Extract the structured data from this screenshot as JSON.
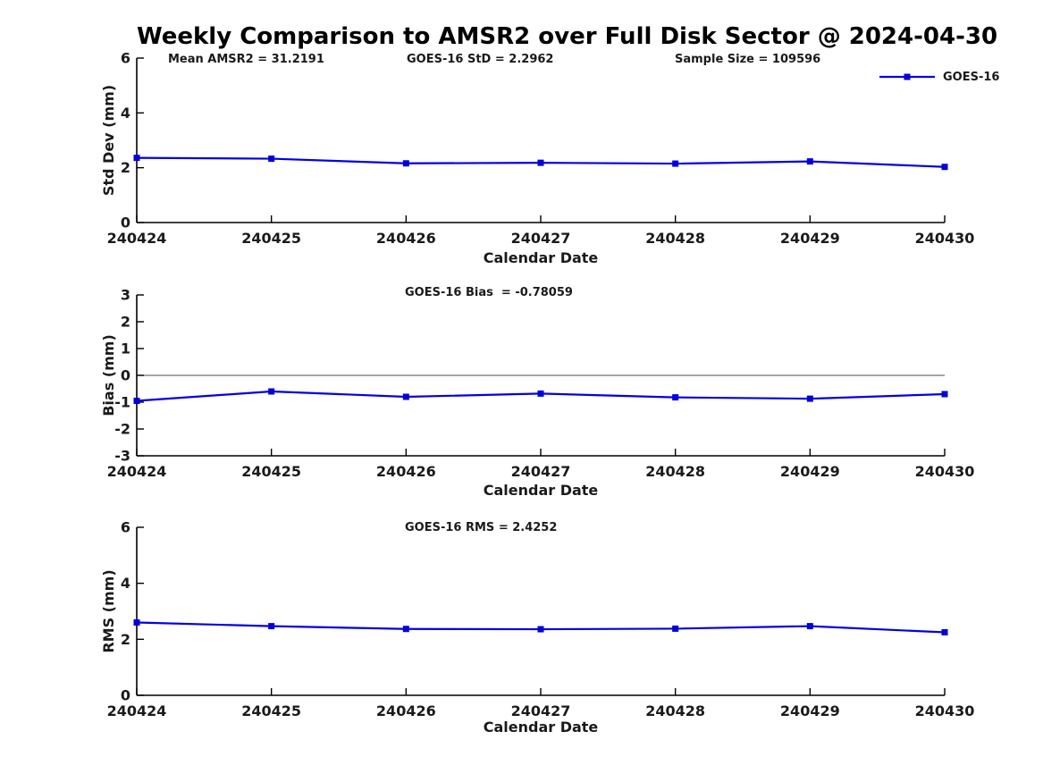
{
  "title": "Weekly Comparison to AMSR2 over Full Disk Sector @ 2024-04-30",
  "colors": {
    "line": "#0000E8",
    "marker": "#0000D8",
    "zero_line": "#6e6e6e",
    "axis": "#000000",
    "text": "#1a1a1a"
  },
  "chart_data": [
    {
      "type": "line",
      "name": "stddev",
      "ylabel": "Std Dev (mm)",
      "xlabel": "Calendar Date",
      "categories": [
        "240424",
        "240425",
        "240426",
        "240427",
        "240428",
        "240429",
        "240430"
      ],
      "series": [
        {
          "name": "GOES-16",
          "values": [
            2.36,
            2.33,
            2.16,
            2.18,
            2.15,
            2.23,
            2.03
          ]
        }
      ],
      "ylim": [
        0,
        6
      ],
      "yticks": [
        0,
        2,
        4,
        6
      ],
      "grid": false,
      "legend_position": "top-right",
      "annotations": [
        {
          "text": "Mean AMSR2 = 31.2191"
        },
        {
          "text": "GOES-16 StD = 2.2962"
        },
        {
          "text": "Sample Size = 109596"
        }
      ]
    },
    {
      "type": "line",
      "name": "bias",
      "ylabel": "Bias (mm)",
      "xlabel": "Calendar Date",
      "categories": [
        "240424",
        "240425",
        "240426",
        "240427",
        "240428",
        "240429",
        "240430"
      ],
      "series": [
        {
          "name": "GOES-16",
          "values": [
            -0.95,
            -0.6,
            -0.8,
            -0.68,
            -0.82,
            -0.87,
            -0.7
          ]
        }
      ],
      "ylim": [
        -3,
        3
      ],
      "yticks": [
        -3,
        -2,
        -1,
        0,
        1,
        2,
        3
      ],
      "zero_line": true,
      "grid": false,
      "annotations": [
        {
          "text": "GOES-16 Bias  = -0.78059"
        }
      ]
    },
    {
      "type": "line",
      "name": "rms",
      "ylabel": "RMS (mm)",
      "xlabel": "Calendar Date",
      "categories": [
        "240424",
        "240425",
        "240426",
        "240427",
        "240428",
        "240429",
        "240430"
      ],
      "series": [
        {
          "name": "GOES-16",
          "values": [
            2.6,
            2.47,
            2.37,
            2.36,
            2.38,
            2.47,
            2.25
          ]
        }
      ],
      "ylim": [
        0,
        6
      ],
      "yticks": [
        0,
        2,
        4,
        6
      ],
      "grid": false,
      "annotations": [
        {
          "text": "GOES-16 RMS = 2.4252"
        }
      ]
    }
  ]
}
